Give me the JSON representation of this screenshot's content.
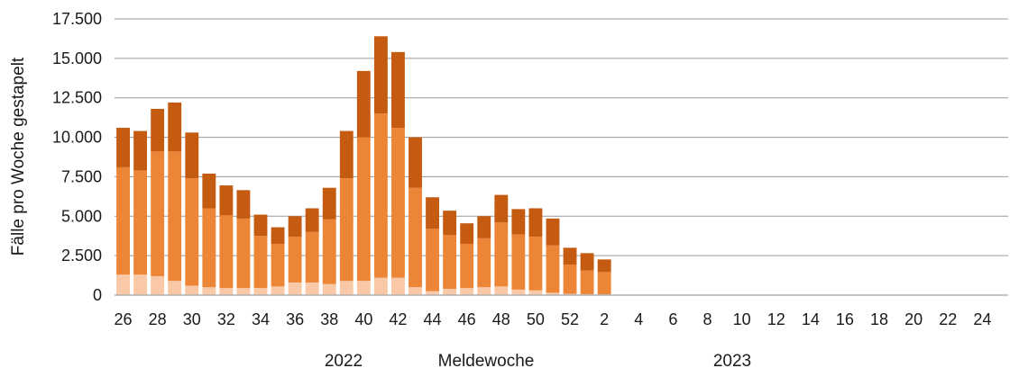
{
  "chart_data": {
    "type": "bar",
    "stacked": true,
    "ylabel": "Fälle pro Woche gestapelt",
    "xlabel": "Meldewoche",
    "year_labels": [
      "2022",
      "2023"
    ],
    "ylim": [
      0,
      17500
    ],
    "y_ticks": [
      "0",
      "2.500",
      "5.000",
      "7.500",
      "10.000",
      "12.500",
      "15.000",
      "17.500"
    ],
    "y_tick_values": [
      0,
      2500,
      5000,
      7500,
      10000,
      12500,
      15000,
      17500
    ],
    "grid": true,
    "categories": [
      "26",
      "27",
      "28",
      "29",
      "30",
      "31",
      "32",
      "33",
      "34",
      "35",
      "36",
      "37",
      "38",
      "39",
      "40",
      "41",
      "42",
      "43",
      "44",
      "45",
      "46",
      "47",
      "48",
      "49",
      "50",
      "51",
      "52",
      "1",
      "2",
      "3",
      "4",
      "5",
      "6",
      "7",
      "8",
      "9",
      "10",
      "11",
      "12",
      "13",
      "14",
      "15",
      "16",
      "17",
      "18",
      "19",
      "20",
      "21",
      "22",
      "23",
      "24",
      "25"
    ],
    "x_tick_labels": [
      "26",
      "28",
      "30",
      "32",
      "34",
      "36",
      "38",
      "40",
      "42",
      "44",
      "46",
      "48",
      "50",
      "52",
      "2",
      "4",
      "6",
      "8",
      "10",
      "12",
      "14",
      "16",
      "18",
      "20",
      "22",
      "24"
    ],
    "colors": [
      "#f9c8a6",
      "#ed8537",
      "#c55a11"
    ],
    "series": [
      {
        "values": [
          1300,
          1300,
          1200,
          900,
          600,
          500,
          450,
          450,
          450,
          550,
          800,
          800,
          700,
          900,
          900,
          1100,
          1100,
          500,
          250,
          400,
          450,
          500,
          550,
          350,
          300,
          150,
          80,
          60,
          40,
          0,
          0,
          0,
          0,
          0,
          0,
          0,
          0,
          0,
          0,
          0,
          0,
          0,
          0,
          0,
          0,
          0,
          0,
          0,
          0,
          0,
          0,
          0
        ]
      },
      {
        "values": [
          6800,
          6600,
          7900,
          8200,
          6800,
          5000,
          4600,
          4400,
          3300,
          2700,
          2900,
          3200,
          4100,
          6500,
          9100,
          10400,
          9500,
          6300,
          3950,
          3400,
          2800,
          3100,
          4050,
          3500,
          3400,
          3000,
          1840,
          1500,
          1420,
          0,
          0,
          0,
          0,
          0,
          0,
          0,
          0,
          0,
          0,
          0,
          0,
          0,
          0,
          0,
          0,
          0,
          0,
          0,
          0,
          0,
          0,
          0
        ]
      },
      {
        "values": [
          2500,
          2500,
          2700,
          3100,
          2900,
          2200,
          1900,
          1800,
          1350,
          1050,
          1300,
          1500,
          2000,
          3000,
          4200,
          4900,
          4800,
          3200,
          2000,
          1550,
          1300,
          1400,
          1750,
          1600,
          1800,
          1700,
          1080,
          1100,
          800,
          0,
          0,
          0,
          0,
          0,
          0,
          0,
          0,
          0,
          0,
          0,
          0,
          0,
          0,
          0,
          0,
          0,
          0,
          0,
          0,
          0,
          0,
          0
        ]
      }
    ]
  }
}
